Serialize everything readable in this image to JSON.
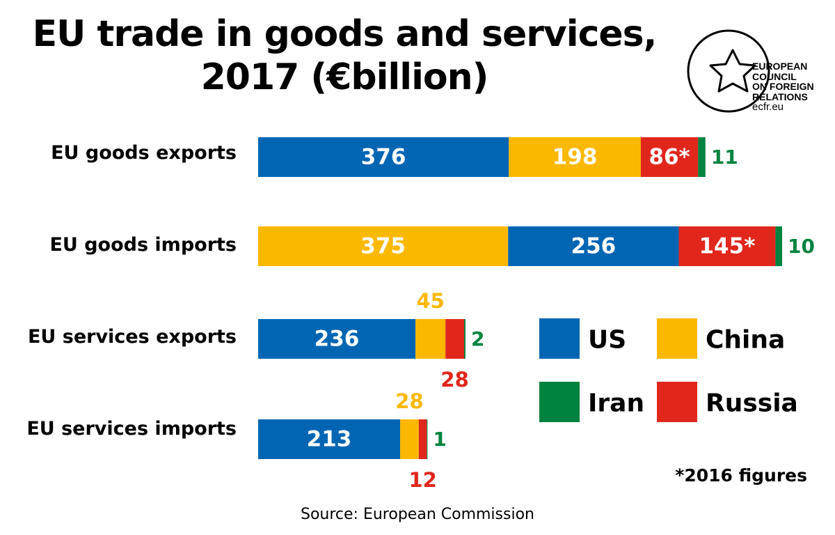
{
  "title_line1": "EU trade in goods and services,",
  "title_line2": "2017 (€billion)",
  "logo": {
    "line1": "EUROPEAN",
    "line2": "COUNCIL",
    "line3": "ON FOREIGN",
    "line4": "RELATIONS",
    "url": "ecfr.eu"
  },
  "footnote": "*2016 figures",
  "source": "Source: European Commission",
  "colors": {
    "US": "#0065b3",
    "China": "#fbb800",
    "Russia": "#e1261c",
    "Iran": "#00833e"
  },
  "chart_data": {
    "type": "bar",
    "orientation": "horizontal",
    "stacked": true,
    "title": "EU trade in goods and services, 2017 (€billion)",
    "categories": [
      "EU goods exports",
      "EU goods imports",
      "EU services exports",
      "EU services imports"
    ],
    "legend": [
      "US",
      "China",
      "Iran",
      "Russia"
    ],
    "legend_placement": "right",
    "rows": [
      {
        "label": "EU goods exports",
        "segments": [
          {
            "series": "US",
            "value": 376,
            "label": "376"
          },
          {
            "series": "China",
            "value": 198,
            "label": "198"
          },
          {
            "series": "Russia",
            "value": 86,
            "label": "86*"
          },
          {
            "series": "Iran",
            "value": 11,
            "label": "11"
          }
        ]
      },
      {
        "label": "EU goods imports",
        "segments": [
          {
            "series": "China",
            "value": 375,
            "label": "375"
          },
          {
            "series": "US",
            "value": 256,
            "label": "256"
          },
          {
            "series": "Russia",
            "value": 145,
            "label": "145*"
          },
          {
            "series": "Iran",
            "value": 10,
            "label": "10"
          }
        ]
      },
      {
        "label": "EU services exports",
        "segments": [
          {
            "series": "US",
            "value": 236,
            "label": "236"
          },
          {
            "series": "China",
            "value": 45,
            "label": "45"
          },
          {
            "series": "Russia",
            "value": 28,
            "label": "28"
          },
          {
            "series": "Iran",
            "value": 2,
            "label": "2"
          }
        ]
      },
      {
        "label": "EU services imports",
        "segments": [
          {
            "series": "US",
            "value": 213,
            "label": "213"
          },
          {
            "series": "China",
            "value": 28,
            "label": "28"
          },
          {
            "series": "Russia",
            "value": 12,
            "label": "12"
          },
          {
            "series": "Iran",
            "value": 1,
            "label": "1"
          }
        ]
      }
    ],
    "grid": false
  }
}
